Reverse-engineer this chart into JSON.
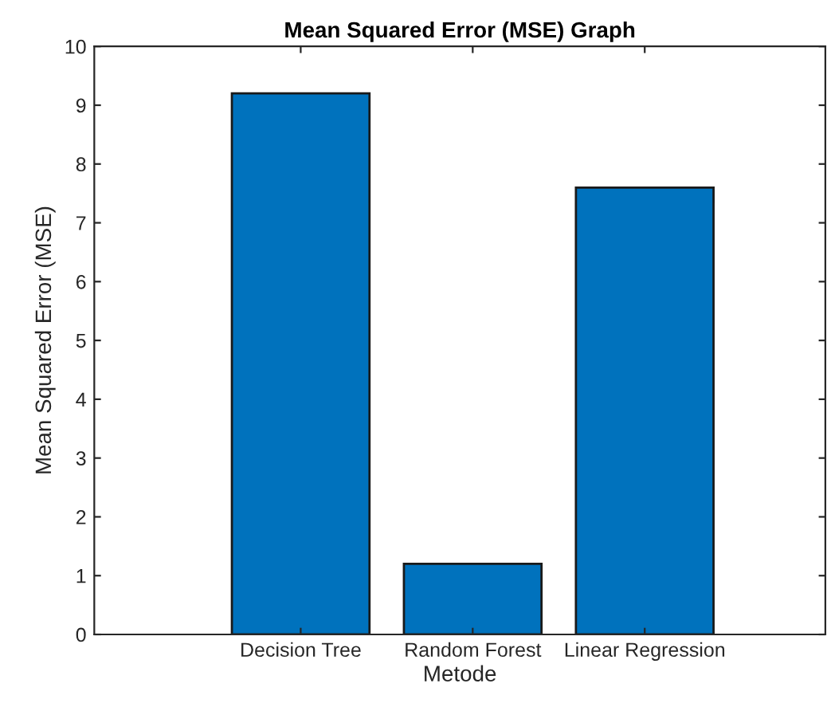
{
  "chart_data": {
    "type": "bar",
    "title": "Mean Squared Error (MSE) Graph",
    "xlabel": "Metode",
    "ylabel": "Mean Squared Error (MSE)",
    "categories": [
      "Decision Tree",
      "Random Forest",
      "Linear Regression"
    ],
    "values": [
      9.2,
      1.2,
      7.6
    ],
    "color": "#0072bd",
    "ylim": [
      0,
      10
    ],
    "yticks": [
      0,
      1,
      2,
      3,
      4,
      5,
      6,
      7,
      8,
      9,
      10
    ],
    "grid": false,
    "legend": false
  }
}
